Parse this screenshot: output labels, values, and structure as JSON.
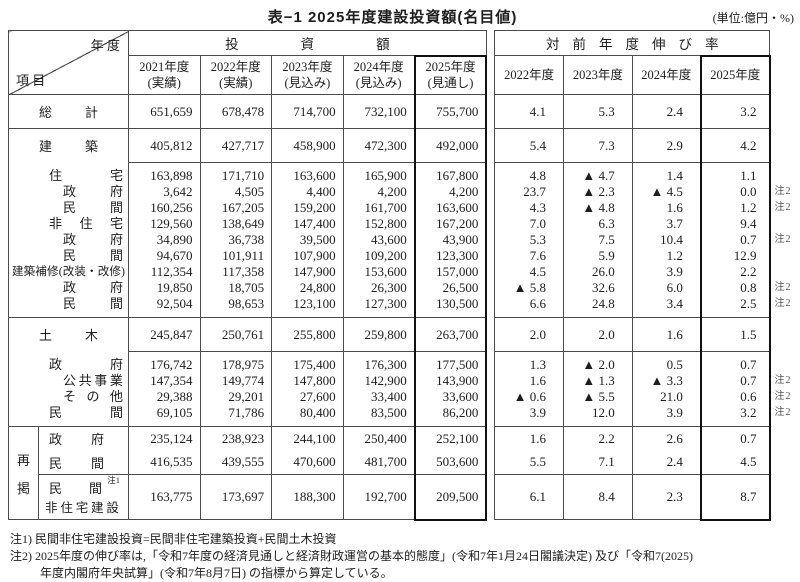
{
  "title": "表−1 2025年度建設投資額(名目値)",
  "unit": "(単位:億円・%)",
  "corner": {
    "top": "年 度",
    "bottom": "項 目"
  },
  "left_table": {
    "group_header": "投資額",
    "columns": [
      {
        "line1": "2021年度",
        "line2": "(実績)"
      },
      {
        "line1": "2022年度",
        "line2": "(実績)"
      },
      {
        "line1": "2023年度",
        "line2": "(見込み)"
      },
      {
        "line1": "2024年度",
        "line2": "(見込み)"
      },
      {
        "line1": "2025年度",
        "line2": "(見通し)"
      }
    ]
  },
  "right_table": {
    "group_header": "対前年度伸び率",
    "columns": [
      "2022年度",
      "2023年度",
      "2024年度",
      "2025年度"
    ]
  },
  "rows": [
    {
      "label": "総計",
      "lclass": "sec",
      "kind": "sec",
      "sep": "full",
      "pad": "",
      "values": [
        "651,659",
        "678,478",
        "714,700",
        "732,100",
        "755,700"
      ],
      "rates": [
        "4.1",
        "5.3",
        "2.4",
        "3.2"
      ],
      "note": ""
    },
    {
      "label": "建築",
      "lclass": "sec",
      "kind": "sec",
      "sep": "full",
      "pad": "",
      "values": [
        "405,812",
        "427,717",
        "458,900",
        "472,300",
        "492,000"
      ],
      "rates": [
        "5.4",
        "7.3",
        "2.9",
        "4.2"
      ],
      "note": ""
    },
    {
      "label": "住宅",
      "lclass": "g1",
      "kind": "det",
      "sep": "data",
      "pad": "pt",
      "values": [
        "163,898",
        "171,710",
        "163,600",
        "165,900",
        "167,800"
      ],
      "rates": [
        "4.8",
        "▲ 4.7",
        "1.4",
        "1.1"
      ],
      "note": ""
    },
    {
      "label": "政府",
      "lclass": "g2",
      "kind": "det",
      "sep": "none",
      "pad": "",
      "values": [
        "3,642",
        "4,505",
        "4,400",
        "4,200",
        "4,200"
      ],
      "rates": [
        "23.7",
        "▲ 2.3",
        "▲ 4.5",
        "0.0"
      ],
      "note": "注2"
    },
    {
      "label": "民間",
      "lclass": "g2",
      "kind": "det",
      "sep": "none",
      "pad": "",
      "values": [
        "160,256",
        "167,205",
        "159,200",
        "161,700",
        "163,600"
      ],
      "rates": [
        "4.3",
        "▲ 4.8",
        "1.6",
        "1.2"
      ],
      "note": "注2"
    },
    {
      "label": "非住宅",
      "lclass": "g1",
      "kind": "det",
      "sep": "none",
      "pad": "",
      "values": [
        "129,560",
        "138,649",
        "147,400",
        "152,800",
        "167,200"
      ],
      "rates": [
        "7.0",
        "6.3",
        "3.7",
        "9.4"
      ],
      "note": ""
    },
    {
      "label": "政府",
      "lclass": "g2",
      "kind": "det",
      "sep": "none",
      "pad": "",
      "values": [
        "34,890",
        "36,738",
        "39,500",
        "43,600",
        "43,900"
      ],
      "rates": [
        "5.3",
        "7.5",
        "10.4",
        "0.7"
      ],
      "note": "注2"
    },
    {
      "label": "民間",
      "lclass": "g2",
      "kind": "det",
      "sep": "none",
      "pad": "",
      "values": [
        "94,670",
        "101,911",
        "107,900",
        "109,200",
        "123,300"
      ],
      "rates": [
        "7.6",
        "5.9",
        "1.2",
        "12.9"
      ],
      "note": ""
    },
    {
      "label": "建築補修(改装・改修)",
      "lclass": "gfull",
      "kind": "det",
      "sep": "none",
      "pad": "",
      "values": [
        "112,354",
        "117,358",
        "147,900",
        "153,600",
        "157,000"
      ],
      "rates": [
        "4.5",
        "26.0",
        "3.9",
        "2.2"
      ],
      "note": ""
    },
    {
      "label": "政府",
      "lclass": "g2",
      "kind": "det",
      "sep": "none",
      "pad": "",
      "values": [
        "19,850",
        "18,705",
        "24,800",
        "26,300",
        "26,500"
      ],
      "rates": [
        "▲ 5.8",
        "32.6",
        "6.0",
        "0.8"
      ],
      "note": "注2"
    },
    {
      "label": "民間",
      "lclass": "g2",
      "kind": "det",
      "sep": "none",
      "pad": "pb",
      "values": [
        "92,504",
        "98,653",
        "123,100",
        "127,300",
        "130,500"
      ],
      "rates": [
        "6.6",
        "24.8",
        "3.4",
        "2.5"
      ],
      "note": "注2"
    },
    {
      "label": "土木",
      "lclass": "sec",
      "kind": "sec",
      "sep": "full",
      "pad": "",
      "values": [
        "245,847",
        "250,761",
        "255,800",
        "259,800",
        "263,700"
      ],
      "rates": [
        "2.0",
        "2.0",
        "1.6",
        "1.5"
      ],
      "note": ""
    },
    {
      "label": "政府",
      "lclass": "g1",
      "kind": "det",
      "sep": "data",
      "pad": "pt",
      "values": [
        "176,742",
        "178,975",
        "175,400",
        "176,300",
        "177,500"
      ],
      "rates": [
        "1.3",
        "▲ 2.0",
        "0.5",
        "0.7"
      ],
      "note": ""
    },
    {
      "label": "公共事業",
      "lclass": "g2",
      "kind": "det",
      "sep": "none",
      "pad": "",
      "values": [
        "147,354",
        "149,774",
        "147,800",
        "142,900",
        "143,900"
      ],
      "rates": [
        "1.6",
        "▲ 1.3",
        "▲ 3.3",
        "0.7"
      ],
      "note": "注2"
    },
    {
      "label": "その他",
      "lclass": "g2",
      "kind": "det",
      "sep": "none",
      "pad": "",
      "values": [
        "29,388",
        "29,201",
        "27,600",
        "33,400",
        "33,600"
      ],
      "rates": [
        "▲ 0.6",
        "▲ 5.5",
        "21.0",
        "0.6"
      ],
      "note": "注2"
    },
    {
      "label": "民間",
      "lclass": "g1",
      "kind": "det",
      "sep": "none",
      "pad": "pb",
      "values": [
        "69,105",
        "71,786",
        "80,400",
        "83,500",
        "86,200"
      ],
      "rates": [
        "3.9",
        "12.0",
        "3.9",
        "3.2"
      ],
      "note": "注2"
    }
  ],
  "saikei": {
    "side_label": "再掲",
    "rows": [
      {
        "label": "政府",
        "values": [
          "235,124",
          "238,923",
          "244,100",
          "250,400",
          "252,100"
        ],
        "rates": [
          "1.6",
          "2.2",
          "2.6",
          "0.7"
        ],
        "note": ""
      },
      {
        "label": "民間",
        "values": [
          "416,535",
          "439,555",
          "470,600",
          "481,700",
          "503,600"
        ],
        "rates": [
          "5.5",
          "7.1",
          "2.4",
          "4.5"
        ],
        "note": ""
      }
    ],
    "tall_row": {
      "label": "民間",
      "sup": "注1",
      "label2": "非住宅建設",
      "values": [
        "163,775",
        "173,697",
        "188,300",
        "192,700",
        "209,500"
      ],
      "rates": [
        "6.1",
        "8.4",
        "2.3",
        "8.7"
      ],
      "note": ""
    }
  },
  "footnotes": [
    "注1) 民間非住宅建設投資=民間非住宅建築投資+民間土木投資",
    "注2) 2025年度の伸び率は,「令和7年度の経済見通しと経済財政運営の基本的態度」(令和7年1月24日閣議決定) 及び「令和7(2025)",
    "年度内閣府年央試算」(令和7年8月7日) の指標から算定している。"
  ]
}
